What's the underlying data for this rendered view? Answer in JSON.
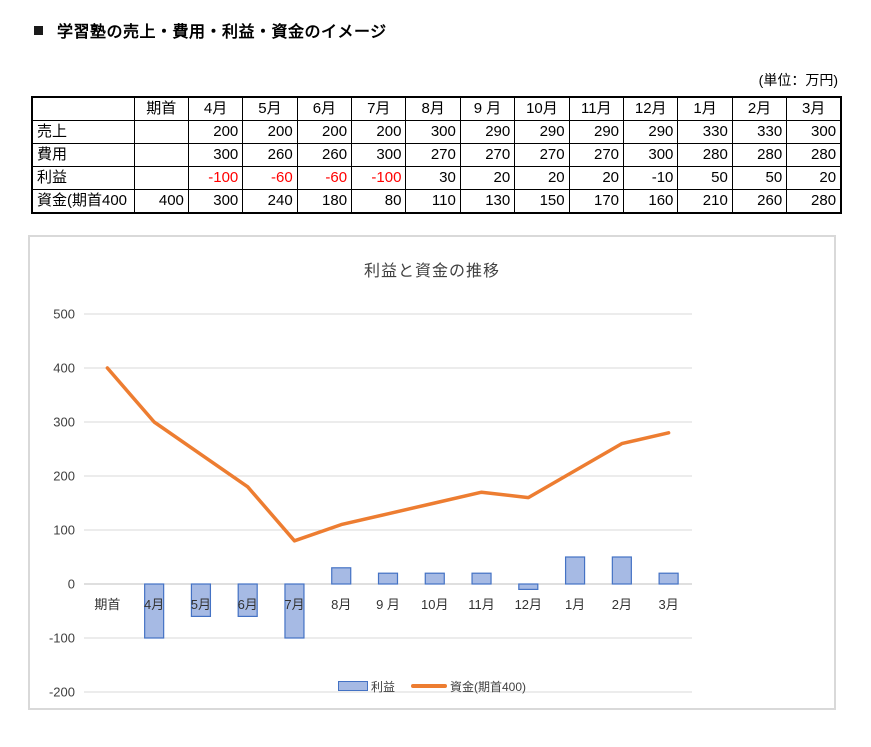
{
  "page": {
    "title": "学習塾の売上・費用・利益・資金のイメージ",
    "unit_label": "(単位：万円)"
  },
  "table": {
    "columns": [
      "",
      "期首",
      "4月",
      "5月",
      "6月",
      "7月",
      "8月",
      "9 月",
      "10月",
      "11月",
      "12月",
      "1月",
      "2月",
      "3月"
    ],
    "rows": [
      {
        "label": "売上",
        "values": [
          "",
          "200",
          "200",
          "200",
          "200",
          "300",
          "290",
          "290",
          "290",
          "290",
          "330",
          "330",
          "300"
        ]
      },
      {
        "label": "費用",
        "values": [
          "",
          "300",
          "260",
          "260",
          "300",
          "270",
          "270",
          "270",
          "270",
          "300",
          "280",
          "280",
          "280"
        ]
      },
      {
        "label": "利益",
        "values": [
          "",
          "-100",
          "-60",
          "-60",
          "-100",
          "30",
          "20",
          "20",
          "20",
          "-10",
          "50",
          "50",
          "20"
        ],
        "red_indices": [
          1,
          2,
          3,
          4
        ]
      },
      {
        "label": "資金(期首400",
        "values": [
          "400",
          "300",
          "240",
          "180",
          "80",
          "110",
          "130",
          "150",
          "170",
          "160",
          "210",
          "260",
          "280"
        ]
      }
    ],
    "negative_color": "#ff0000"
  },
  "chart_data": {
    "type": "combo",
    "title": "利益と資金の推移",
    "categories": [
      "期首",
      "4月",
      "5月",
      "6月",
      "7月",
      "8月",
      "9 月",
      "10月",
      "11月",
      "12月",
      "1月",
      "2月",
      "3月"
    ],
    "series": [
      {
        "name": "利益",
        "type": "bar",
        "values": [
          null,
          -100,
          -60,
          -60,
          -100,
          30,
          20,
          20,
          20,
          -10,
          50,
          50,
          20
        ],
        "fill": "#a6bae4",
        "border": "#4472c4"
      },
      {
        "name": "資金(期首400)",
        "type": "line",
        "values": [
          400,
          300,
          240,
          180,
          80,
          110,
          130,
          150,
          170,
          160,
          210,
          260,
          280
        ],
        "color": "#ed7d31"
      }
    ],
    "ylim": [
      -200,
      500
    ],
    "ytick_step": 100,
    "grid": true,
    "legend_position": "bottom",
    "colors": {
      "grid": "#d9d9d9",
      "zero_axis": "#bfbfbf",
      "text": "#404040"
    }
  }
}
